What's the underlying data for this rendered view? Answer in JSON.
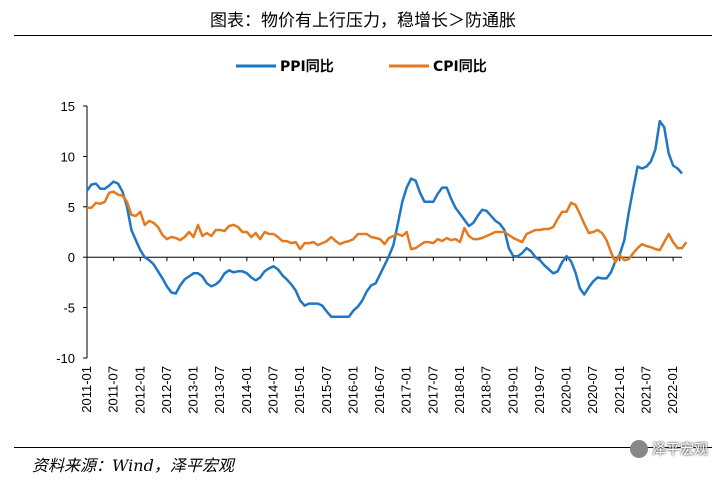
{
  "header": {
    "title": "图表：物价有上行压力，稳增长＞防通胀"
  },
  "footer": {
    "source": "资料来源：Wind，泽平宏观",
    "watermark": "泽平宏观"
  },
  "chart_data": {
    "type": "line",
    "title": "图表：物价有上行压力，稳增长＞防通胀",
    "ylim": [
      -10,
      15
    ],
    "yticks": [
      -10,
      -5,
      0,
      5,
      10,
      15
    ],
    "xticks": [
      "2011-01",
      "2011-07",
      "2012-01",
      "2012-07",
      "2013-01",
      "2013-07",
      "2014-01",
      "2014-07",
      "2015-01",
      "2015-07",
      "2016-01",
      "2016-07",
      "2017-01",
      "2017-07",
      "2018-01",
      "2018-07",
      "2019-01",
      "2019-07",
      "2020-01",
      "2020-07",
      "2021-01",
      "2021-07",
      "2022-01"
    ],
    "x_start": "2011-01",
    "x_end": "2022-03",
    "legend_position": "top-center",
    "colors": {
      "ppi": "#1f77c4",
      "cpi": "#e37a1f"
    },
    "series": [
      {
        "name": "PPI同比",
        "color": "#1f77c4",
        "values": [
          6.6,
          7.2,
          7.3,
          6.8,
          6.8,
          7.1,
          7.5,
          7.3,
          6.5,
          5.0,
          2.7,
          1.7,
          0.7,
          0.0,
          -0.3,
          -0.7,
          -1.4,
          -2.1,
          -2.9,
          -3.5,
          -3.6,
          -2.8,
          -2.2,
          -1.9,
          -1.6,
          -1.6,
          -1.9,
          -2.6,
          -2.9,
          -2.7,
          -2.3,
          -1.6,
          -1.3,
          -1.5,
          -1.4,
          -1.4,
          -1.6,
          -2.0,
          -2.3,
          -2.0,
          -1.4,
          -1.1,
          -0.9,
          -1.2,
          -1.8,
          -2.2,
          -2.7,
          -3.3,
          -4.3,
          -4.8,
          -4.6,
          -4.6,
          -4.6,
          -4.8,
          -5.4,
          -5.9,
          -5.9,
          -5.9,
          -5.9,
          -5.9,
          -5.3,
          -4.9,
          -4.3,
          -3.4,
          -2.8,
          -2.6,
          -1.7,
          -0.8,
          0.1,
          1.2,
          3.3,
          5.5,
          6.9,
          7.8,
          7.6,
          6.4,
          5.5,
          5.5,
          5.5,
          6.3,
          6.9,
          6.9,
          5.8,
          4.9,
          4.3,
          3.7,
          3.1,
          3.4,
          4.1,
          4.7,
          4.6,
          4.1,
          3.6,
          3.3,
          2.7,
          0.9,
          0.1,
          0.1,
          0.4,
          0.9,
          0.6,
          0.0,
          -0.3,
          -0.8,
          -1.2,
          -1.6,
          -1.4,
          -0.5,
          0.1,
          -0.4,
          -1.5,
          -3.1,
          -3.7,
          -3.0,
          -2.4,
          -2.0,
          -2.1,
          -2.1,
          -1.5,
          -0.4,
          0.3,
          1.7,
          4.4,
          6.8,
          9.0,
          8.8,
          9.0,
          9.5,
          10.7,
          13.5,
          12.9,
          10.3,
          9.1,
          8.8,
          8.3
        ]
      },
      {
        "name": "CPI同比",
        "color": "#e37a1f",
        "values": [
          4.9,
          4.9,
          5.4,
          5.3,
          5.5,
          6.4,
          6.5,
          6.2,
          6.1,
          5.5,
          4.2,
          4.1,
          4.5,
          3.2,
          3.6,
          3.4,
          3.0,
          2.2,
          1.8,
          2.0,
          1.9,
          1.7,
          2.0,
          2.5,
          2.0,
          3.2,
          2.1,
          2.4,
          2.1,
          2.7,
          2.7,
          2.6,
          3.1,
          3.2,
          3.0,
          2.5,
          2.5,
          2.0,
          2.4,
          1.8,
          2.5,
          2.3,
          2.3,
          2.0,
          1.6,
          1.6,
          1.4,
          1.5,
          0.8,
          1.4,
          1.4,
          1.5,
          1.2,
          1.4,
          1.6,
          2.0,
          1.6,
          1.3,
          1.5,
          1.6,
          1.8,
          2.3,
          2.3,
          2.3,
          2.0,
          1.9,
          1.8,
          1.3,
          1.9,
          2.1,
          2.3,
          2.1,
          2.5,
          0.8,
          0.9,
          1.2,
          1.5,
          1.5,
          1.4,
          1.8,
          1.6,
          1.9,
          1.7,
          1.8,
          1.5,
          2.9,
          2.1,
          1.8,
          1.8,
          1.9,
          2.1,
          2.3,
          2.5,
          2.5,
          2.5,
          2.2,
          1.9,
          1.7,
          1.5,
          2.3,
          2.5,
          2.7,
          2.7,
          2.8,
          2.8,
          3.0,
          3.8,
          4.5,
          4.5,
          5.4,
          5.2,
          4.3,
          3.3,
          2.4,
          2.5,
          2.7,
          2.4,
          1.7,
          0.5,
          -0.5,
          0.2,
          -0.3,
          -0.2,
          0.4,
          0.9,
          1.3,
          1.1,
          1.0,
          0.8,
          0.7,
          1.5,
          2.3,
          1.5,
          0.9,
          0.9,
          1.5
        ]
      }
    ]
  }
}
